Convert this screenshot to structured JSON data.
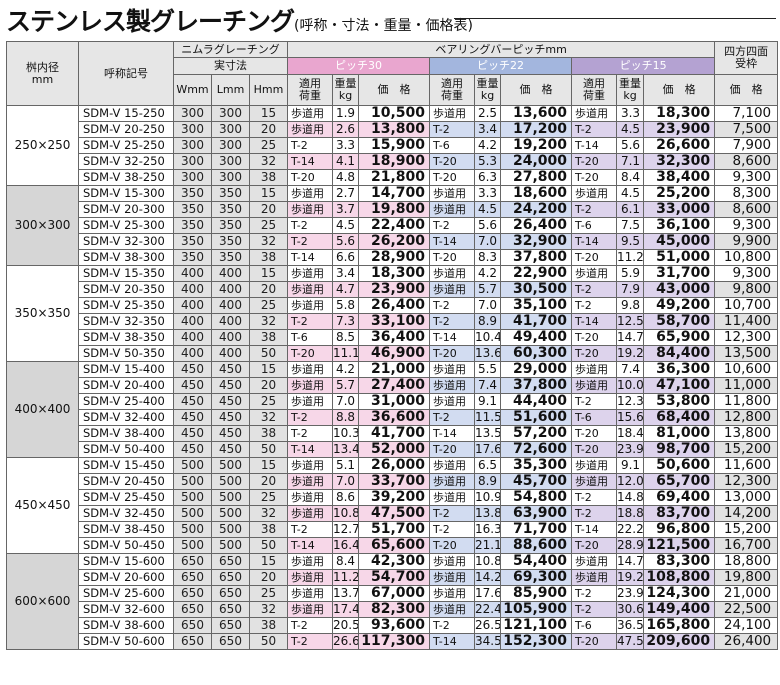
{
  "title": {
    "main": "ステンレス製グレーチング",
    "sub": "(呼称・寸法・重量・価格表)"
  },
  "headers": {
    "size": "桝内径\nmm",
    "name": "呼称記号",
    "nimura": "ニムラグレーチング",
    "actual": "実寸法",
    "w": "Wmm",
    "l": "Lmm",
    "h": "Hmm",
    "bearing": "ベアリングバーピッチmm",
    "pitch30": "ピッチ30",
    "pitch22": "ピッチ22",
    "pitch15": "ピッチ15",
    "load": "適用\n荷重",
    "weight": "重量\nkg",
    "price": "価　格",
    "fourside": "四方四面\n受枠",
    "fprice": "価　格"
  },
  "groups": [
    {
      "size": "250×250",
      "rows": [
        [
          "SDM-V 15-250",
          "300",
          "300",
          "15",
          "歩道用",
          "1.9",
          "10,500",
          "歩道用",
          "2.5",
          "13,600",
          "歩道用",
          "3.3",
          "18,300",
          "7,100"
        ],
        [
          "SDM-V 20-250",
          "300",
          "300",
          "20",
          "歩道用",
          "2.6",
          "13,800",
          "T-2",
          "3.4",
          "17,200",
          "T-2",
          "4.5",
          "23,900",
          "7,500"
        ],
        [
          "SDM-V 25-250",
          "300",
          "300",
          "25",
          "T-2",
          "3.3",
          "15,900",
          "T-6",
          "4.2",
          "19,200",
          "T-14",
          "5.6",
          "26,600",
          "7,900"
        ],
        [
          "SDM-V 32-250",
          "300",
          "300",
          "32",
          "T-14",
          "4.1",
          "18,900",
          "T-20",
          "5.3",
          "24,000",
          "T-20",
          "7.1",
          "32,300",
          "8,600"
        ],
        [
          "SDM-V 38-250",
          "300",
          "300",
          "38",
          "T-20",
          "4.8",
          "21,800",
          "T-20",
          "6.3",
          "27,800",
          "T-20",
          "8.4",
          "38,400",
          "9,300"
        ]
      ]
    },
    {
      "size": "300×300",
      "rows": [
        [
          "SDM-V 15-300",
          "350",
          "350",
          "15",
          "歩道用",
          "2.7",
          "14,700",
          "歩道用",
          "3.3",
          "18,600",
          "歩道用",
          "4.5",
          "25,200",
          "8,300"
        ],
        [
          "SDM-V 20-300",
          "350",
          "350",
          "20",
          "歩道用",
          "3.7",
          "19,800",
          "歩道用",
          "4.5",
          "24,200",
          "T-2",
          "6.1",
          "33,000",
          "8,600"
        ],
        [
          "SDM-V 25-300",
          "350",
          "350",
          "25",
          "T-2",
          "4.5",
          "22,400",
          "T-2",
          "5.6",
          "26,400",
          "T-6",
          "7.5",
          "36,100",
          "9,300"
        ],
        [
          "SDM-V 32-300",
          "350",
          "350",
          "32",
          "T-2",
          "5.6",
          "26,200",
          "T-14",
          "7.0",
          "32,900",
          "T-14",
          "9.5",
          "45,000",
          "9,900"
        ],
        [
          "SDM-V 38-300",
          "350",
          "350",
          "38",
          "T-14",
          "6.6",
          "28,900",
          "T-20",
          "8.3",
          "37,800",
          "T-20",
          "11.2",
          "51,000",
          "10,800"
        ]
      ]
    },
    {
      "size": "350×350",
      "rows": [
        [
          "SDM-V 15-350",
          "400",
          "400",
          "15",
          "歩道用",
          "3.4",
          "18,300",
          "歩道用",
          "4.2",
          "22,900",
          "歩道用",
          "5.9",
          "31,700",
          "9,300"
        ],
        [
          "SDM-V 20-350",
          "400",
          "400",
          "20",
          "歩道用",
          "4.7",
          "23,900",
          "歩道用",
          "5.7",
          "30,500",
          "T-2",
          "7.9",
          "43,000",
          "9,800"
        ],
        [
          "SDM-V 25-350",
          "400",
          "400",
          "25",
          "歩道用",
          "5.8",
          "26,400",
          "T-2",
          "7.0",
          "35,100",
          "T-2",
          "9.8",
          "49,200",
          "10,700"
        ],
        [
          "SDM-V 32-350",
          "400",
          "400",
          "32",
          "T-2",
          "7.3",
          "33,100",
          "T-2",
          "8.9",
          "41,700",
          "T-14",
          "12.5",
          "58,700",
          "11,400"
        ],
        [
          "SDM-V 38-350",
          "400",
          "400",
          "38",
          "T-6",
          "8.5",
          "36,400",
          "T-14",
          "10.4",
          "49,400",
          "T-20",
          "14.7",
          "65,900",
          "12,300"
        ],
        [
          "SDM-V 50-350",
          "400",
          "400",
          "50",
          "T-20",
          "11.1",
          "46,900",
          "T-20",
          "13.6",
          "60,300",
          "T-20",
          "19.2",
          "84,400",
          "13,500"
        ]
      ]
    },
    {
      "size": "400×400",
      "rows": [
        [
          "SDM-V 15-400",
          "450",
          "450",
          "15",
          "歩道用",
          "4.2",
          "21,000",
          "歩道用",
          "5.5",
          "29,000",
          "歩道用",
          "7.4",
          "36,300",
          "10,600"
        ],
        [
          "SDM-V 20-400",
          "450",
          "450",
          "20",
          "歩道用",
          "5.7",
          "27,400",
          "歩道用",
          "7.4",
          "37,800",
          "歩道用",
          "10.0",
          "47,100",
          "11,000"
        ],
        [
          "SDM-V 25-400",
          "450",
          "450",
          "25",
          "歩道用",
          "7.0",
          "31,000",
          "歩道用",
          "9.1",
          "44,400",
          "T-2",
          "12.3",
          "53,800",
          "11,800"
        ],
        [
          "SDM-V 32-400",
          "450",
          "450",
          "32",
          "T-2",
          "8.8",
          "36,600",
          "T-2",
          "11.5",
          "51,600",
          "T-6",
          "15.6",
          "68,400",
          "12,800"
        ],
        [
          "SDM-V 38-400",
          "450",
          "450",
          "38",
          "T-2",
          "10.3",
          "41,700",
          "T-14",
          "13.5",
          "57,200",
          "T-20",
          "18.4",
          "81,000",
          "13,800"
        ],
        [
          "SDM-V 50-400",
          "450",
          "450",
          "50",
          "T-14",
          "13.4",
          "52,000",
          "T-20",
          "17.6",
          "72,600",
          "T-20",
          "23.9",
          "98,700",
          "15,200"
        ]
      ]
    },
    {
      "size": "450×450",
      "rows": [
        [
          "SDM-V 15-450",
          "500",
          "500",
          "15",
          "歩道用",
          "5.1",
          "26,000",
          "歩道用",
          "6.5",
          "35,300",
          "歩道用",
          "9.1",
          "50,600",
          "11,600"
        ],
        [
          "SDM-V 20-450",
          "500",
          "500",
          "20",
          "歩道用",
          "7.0",
          "33,700",
          "歩道用",
          "8.9",
          "45,700",
          "歩道用",
          "12.0",
          "65,700",
          "12,300"
        ],
        [
          "SDM-V 25-450",
          "500",
          "500",
          "25",
          "歩道用",
          "8.6",
          "39,200",
          "歩道用",
          "10.9",
          "54,800",
          "T-2",
          "14.8",
          "69,400",
          "13,000"
        ],
        [
          "SDM-V 32-450",
          "500",
          "500",
          "32",
          "歩道用",
          "10.8",
          "47,500",
          "T-2",
          "13.8",
          "63,900",
          "T-2",
          "18.8",
          "83,700",
          "14,200"
        ],
        [
          "SDM-V 38-450",
          "500",
          "500",
          "38",
          "T-2",
          "12.7",
          "51,700",
          "T-2",
          "16.3",
          "71,700",
          "T-14",
          "22.2",
          "96,800",
          "15,200"
        ],
        [
          "SDM-V 50-450",
          "500",
          "500",
          "50",
          "T-14",
          "16.4",
          "65,600",
          "T-20",
          "21.1",
          "88,600",
          "T-20",
          "28.9",
          "121,500",
          "16,700"
        ]
      ]
    },
    {
      "size": "600×600",
      "rows": [
        [
          "SDM-V 15-600",
          "650",
          "650",
          "15",
          "歩道用",
          "8.4",
          "42,300",
          "歩道用",
          "10.8",
          "54,400",
          "歩道用",
          "14.7",
          "83,300",
          "18,800"
        ],
        [
          "SDM-V 20-600",
          "650",
          "650",
          "20",
          "歩道用",
          "11.2",
          "54,700",
          "歩道用",
          "14.2",
          "69,300",
          "歩道用",
          "19.2",
          "108,800",
          "19,800"
        ],
        [
          "SDM-V 25-600",
          "650",
          "650",
          "25",
          "歩道用",
          "13.7",
          "67,000",
          "歩道用",
          "17.6",
          "85,900",
          "T-2",
          "23.9",
          "124,300",
          "21,000"
        ],
        [
          "SDM-V 32-600",
          "650",
          "650",
          "32",
          "歩道用",
          "17.4",
          "82,300",
          "歩道用",
          "22.4",
          "105,900",
          "T-2",
          "30.6",
          "149,400",
          "22,500"
        ],
        [
          "SDM-V 38-600",
          "650",
          "650",
          "38",
          "T-2",
          "20.5",
          "93,600",
          "T-2",
          "26.5",
          "121,100",
          "T-6",
          "36.5",
          "165,800",
          "24,100"
        ],
        [
          "SDM-V 50-600",
          "650",
          "650",
          "50",
          "T-2",
          "26.6",
          "117,300",
          "T-14",
          "34.5",
          "152,300",
          "T-20",
          "47.5",
          "209,600",
          "26,400"
        ]
      ]
    }
  ]
}
